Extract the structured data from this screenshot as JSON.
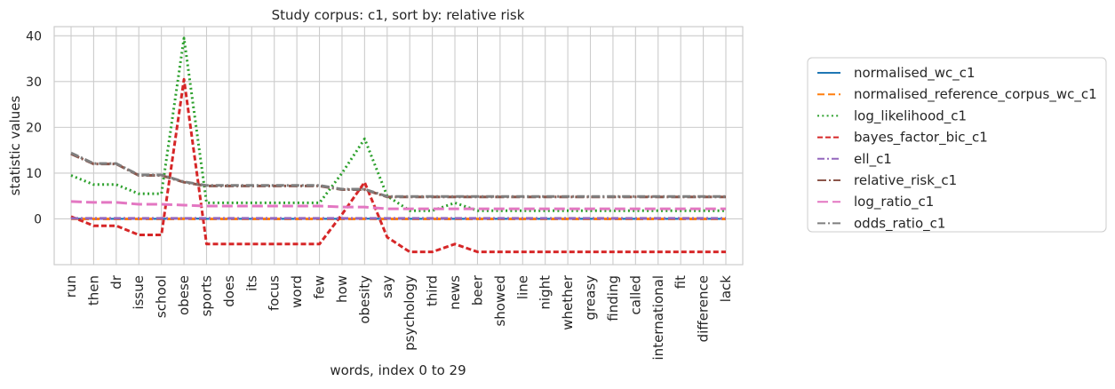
{
  "chart_data": {
    "type": "line",
    "title": "Study corpus: c1, sort by: relative risk",
    "xlabel": "words, index 0 to 29",
    "ylabel": "statistic values",
    "ylim": [
      -10,
      42
    ],
    "yticks": [
      0,
      10,
      20,
      30,
      40
    ],
    "grid": true,
    "legend_position": "outside-right",
    "categories": [
      "run",
      "then",
      "dr",
      "issue",
      "school",
      "obese",
      "sports",
      "does",
      "its",
      "focus",
      "word",
      "few",
      "how",
      "obesity",
      "say",
      "psychology",
      "third",
      "news",
      "beer",
      "showed",
      "line",
      "night",
      "whether",
      "greasy",
      "finding",
      "called",
      "international",
      "fit",
      "difference",
      "lack"
    ],
    "series": [
      {
        "name": "normalised_wc_c1",
        "color": "#1f77b4",
        "dash": "solid",
        "values": [
          0.05,
          0.02,
          0.02,
          0.02,
          0.02,
          0.1,
          0.01,
          0.01,
          0.01,
          0.01,
          0.01,
          0.01,
          0.01,
          0.05,
          0.01,
          0.01,
          0.01,
          0.01,
          0.01,
          0.01,
          0.01,
          0.01,
          0.01,
          0.01,
          0.01,
          0.01,
          0.01,
          0.01,
          0.01,
          0.01
        ]
      },
      {
        "name": "normalised_reference_corpus_wc_c1",
        "color": "#ff7f0e",
        "dash": "dashed",
        "values": [
          0.003,
          0.002,
          0.002,
          0.002,
          0.002,
          0.01,
          0.001,
          0.001,
          0.001,
          0.001,
          0.001,
          0.001,
          0.001,
          0.007,
          0.001,
          0.001,
          0.001,
          0.001,
          0.001,
          0.001,
          0.001,
          0.001,
          0.001,
          0.001,
          0.001,
          0.001,
          0.001,
          0.001,
          0.001,
          0.001
        ]
      },
      {
        "name": "log_likelihood_c1",
        "color": "#2ca02c",
        "dash": "dotted",
        "values": [
          9.5,
          7.5,
          7.5,
          5.5,
          5.5,
          39.5,
          3.5,
          3.5,
          3.5,
          3.5,
          3.5,
          3.5,
          10,
          17.5,
          5,
          1.8,
          1.8,
          3.5,
          1.8,
          1.8,
          1.8,
          1.8,
          1.8,
          1.8,
          1.8,
          1.8,
          1.8,
          1.8,
          1.8,
          1.8
        ]
      },
      {
        "name": "bayes_factor_bic_c1",
        "color": "#d62728",
        "dash": "densedash",
        "values": [
          0.5,
          -1.5,
          -1.5,
          -3.5,
          -3.5,
          30.5,
          -5.5,
          -5.5,
          -5.5,
          -5.5,
          -5.5,
          -5.5,
          1,
          8,
          -4,
          -7.2,
          -7.2,
          -5.5,
          -7.2,
          -7.2,
          -7.2,
          -7.2,
          -7.2,
          -7.2,
          -7.2,
          -7.2,
          -7.2,
          -7.2,
          -7.2,
          -7.2
        ]
      },
      {
        "name": "ell_c1",
        "color": "#9467bd",
        "dash": "dashdot",
        "values": [
          0.1,
          0.1,
          0.1,
          0.1,
          0.1,
          0.1,
          0.1,
          0.1,
          0.1,
          0.1,
          0.1,
          0.1,
          0.1,
          0.1,
          0.1,
          0.1,
          0.1,
          0.1,
          0.1,
          0.1,
          0.1,
          0.1,
          0.1,
          0.1,
          0.1,
          0.1,
          0.1,
          0.1,
          0.1,
          0.1
        ]
      },
      {
        "name": "relative_risk_c1",
        "color": "#8c564b",
        "dash": "loosedashdot",
        "values": [
          14.2,
          12,
          12,
          9.5,
          9.5,
          8,
          7.2,
          7.2,
          7.2,
          7.2,
          7.2,
          7.2,
          6.4,
          6.4,
          4.8,
          4.8,
          4.8,
          4.8,
          4.8,
          4.8,
          4.8,
          4.8,
          4.8,
          4.8,
          4.8,
          4.8,
          4.8,
          4.8,
          4.8,
          4.8
        ]
      },
      {
        "name": "log_ratio_c1",
        "color": "#e377c2",
        "dash": "longdash",
        "values": [
          3.8,
          3.6,
          3.6,
          3.2,
          3.2,
          3,
          2.8,
          2.8,
          2.8,
          2.8,
          2.8,
          2.8,
          2.6,
          2.6,
          2.2,
          2.2,
          2.2,
          2.2,
          2.2,
          2.2,
          2.2,
          2.2,
          2.2,
          2.2,
          2.2,
          2.2,
          2.2,
          2.2,
          2.2,
          2.2
        ]
      },
      {
        "name": "odds_ratio_c1",
        "color": "#7f7f7f",
        "dash": "dashdot2",
        "values": [
          14.4,
          12.1,
          12.1,
          9.6,
          9.6,
          8.1,
          7.3,
          7.3,
          7.3,
          7.3,
          7.3,
          7.3,
          6.5,
          6.5,
          4.9,
          4.9,
          4.9,
          4.9,
          4.9,
          4.9,
          4.9,
          4.9,
          4.9,
          4.9,
          4.9,
          4.9,
          4.9,
          4.9,
          4.9,
          4.9
        ]
      }
    ]
  }
}
